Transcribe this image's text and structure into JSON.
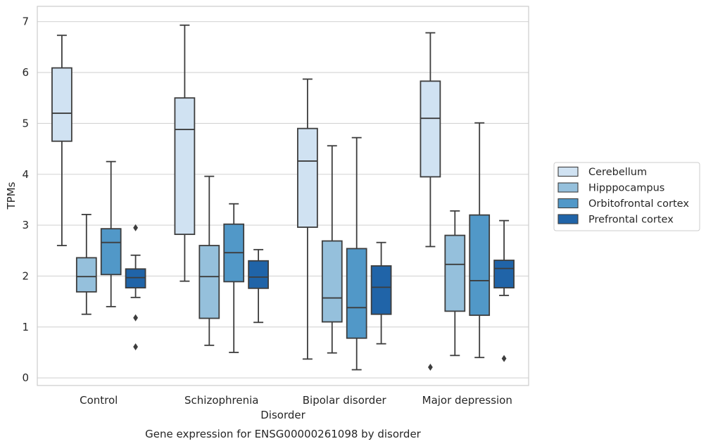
{
  "chart_data": {
    "type": "box",
    "caption": "Gene expression for ENSG00000261098 by disorder",
    "xlabel": "Disorder",
    "ylabel": "TPMs",
    "ylim": [
      -0.15,
      7.3
    ],
    "yticks": [
      0,
      1,
      2,
      3,
      4,
      5,
      6,
      7
    ],
    "grid": "horizontal",
    "legend_position": "right",
    "categories": [
      "Control",
      "Schizophrenia",
      "Bipolar disorder",
      "Major depression"
    ],
    "series": [
      {
        "name": "Cerebellum",
        "color": "#d0e2f2",
        "boxes": [
          {
            "whislo": 2.6,
            "q1": 4.65,
            "med": 5.2,
            "q3": 6.09,
            "whishi": 6.73,
            "fliers": []
          },
          {
            "whislo": 1.9,
            "q1": 2.82,
            "med": 4.88,
            "q3": 5.5,
            "whishi": 6.93,
            "fliers": []
          },
          {
            "whislo": 0.37,
            "q1": 2.96,
            "med": 4.26,
            "q3": 4.9,
            "whishi": 5.87,
            "fliers": []
          },
          {
            "whislo": 2.58,
            "q1": 3.95,
            "med": 5.1,
            "q3": 5.83,
            "whishi": 6.78,
            "fliers": [
              0.21
            ]
          }
        ]
      },
      {
        "name": "Hipppocampus",
        "color": "#95c0dc",
        "boxes": [
          {
            "whislo": 1.25,
            "q1": 1.69,
            "med": 1.99,
            "q3": 2.36,
            "whishi": 3.21,
            "fliers": []
          },
          {
            "whislo": 0.64,
            "q1": 1.17,
            "med": 1.99,
            "q3": 2.6,
            "whishi": 3.96,
            "fliers": []
          },
          {
            "whislo": 0.49,
            "q1": 1.1,
            "med": 1.57,
            "q3": 2.69,
            "whishi": 4.56,
            "fliers": []
          },
          {
            "whislo": 0.44,
            "q1": 1.31,
            "med": 2.23,
            "q3": 2.8,
            "whishi": 3.28,
            "fliers": []
          }
        ]
      },
      {
        "name": "Orbitofrontal cortex",
        "color": "#5198c8",
        "boxes": [
          {
            "whislo": 1.4,
            "q1": 2.03,
            "med": 2.66,
            "q3": 2.93,
            "whishi": 4.25,
            "fliers": []
          },
          {
            "whislo": 0.5,
            "q1": 1.89,
            "med": 2.46,
            "q3": 3.02,
            "whishi": 3.42,
            "fliers": []
          },
          {
            "whislo": 0.16,
            "q1": 0.78,
            "med": 1.38,
            "q3": 2.54,
            "whishi": 4.72,
            "fliers": []
          },
          {
            "whislo": 0.4,
            "q1": 1.23,
            "med": 1.91,
            "q3": 3.2,
            "whishi": 5.01,
            "fliers": []
          }
        ]
      },
      {
        "name": "Prefrontal cortex",
        "color": "#2064a8",
        "boxes": [
          {
            "whislo": 1.58,
            "q1": 1.77,
            "med": 1.97,
            "q3": 2.14,
            "whishi": 2.41,
            "fliers": [
              2.95,
              1.18,
              0.61
            ]
          },
          {
            "whislo": 1.09,
            "q1": 1.76,
            "med": 1.98,
            "q3": 2.3,
            "whishi": 2.52,
            "fliers": []
          },
          {
            "whislo": 0.67,
            "q1": 1.25,
            "med": 1.78,
            "q3": 2.2,
            "whishi": 2.66,
            "fliers": []
          },
          {
            "whislo": 1.62,
            "q1": 1.77,
            "med": 2.15,
            "q3": 2.31,
            "whishi": 3.09,
            "fliers": [
              0.38
            ]
          }
        ]
      }
    ]
  }
}
